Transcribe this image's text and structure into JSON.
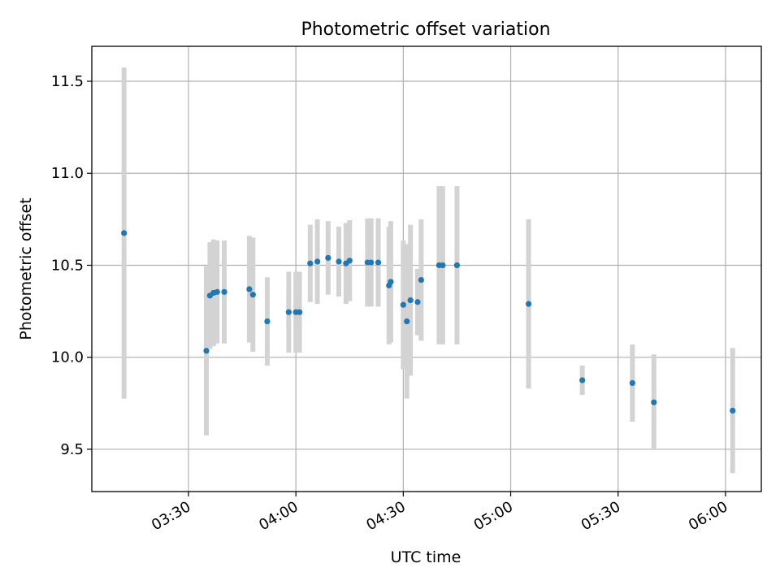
{
  "chart_data": {
    "type": "scatter",
    "title": "Photometric offset variation",
    "xlabel": "UTC time",
    "ylabel": "Photometric offset",
    "xlim": [
      "03:03",
      "06:10"
    ],
    "ylim": [
      9.27,
      11.69
    ],
    "x_ticks": [
      "03:30",
      "04:00",
      "04:30",
      "05:00",
      "05:30",
      "06:00"
    ],
    "y_ticks": [
      "9.5",
      "10.0",
      "10.5",
      "11.0",
      "11.5"
    ],
    "grid": true,
    "colors": {
      "point": "#1f77b4",
      "errorbar": "#d3d3d3",
      "grid": "#b0b0b0"
    },
    "points": [
      {
        "x": "03:12",
        "y": 10.675,
        "err": 0.9
      },
      {
        "x": "03:35",
        "y": 10.035,
        "err": 0.46
      },
      {
        "x": "03:36",
        "y": 10.335,
        "err": 0.29
      },
      {
        "x": "03:37",
        "y": 10.35,
        "err": 0.29
      },
      {
        "x": "03:38",
        "y": 10.355,
        "err": 0.28
      },
      {
        "x": "03:40",
        "y": 10.355,
        "err": 0.28
      },
      {
        "x": "03:47",
        "y": 10.37,
        "err": 0.29
      },
      {
        "x": "03:48",
        "y": 10.34,
        "err": 0.31
      },
      {
        "x": "03:52",
        "y": 10.195,
        "err": 0.24
      },
      {
        "x": "03:58",
        "y": 10.245,
        "err": 0.22
      },
      {
        "x": "04:00",
        "y": 10.245,
        "err": 0.22
      },
      {
        "x": "04:01",
        "y": 10.245,
        "err": 0.22
      },
      {
        "x": "04:04",
        "y": 10.51,
        "err": 0.21
      },
      {
        "x": "04:06",
        "y": 10.52,
        "err": 0.23
      },
      {
        "x": "04:09",
        "y": 10.54,
        "err": 0.2
      },
      {
        "x": "04:12",
        "y": 10.52,
        "err": 0.19
      },
      {
        "x": "04:14",
        "y": 10.51,
        "err": 0.22
      },
      {
        "x": "04:15",
        "y": 10.525,
        "err": 0.22
      },
      {
        "x": "04:20",
        "y": 10.515,
        "err": 0.24
      },
      {
        "x": "04:21",
        "y": 10.515,
        "err": 0.24
      },
      {
        "x": "04:23",
        "y": 10.515,
        "err": 0.24
      },
      {
        "x": "04:26",
        "y": 10.39,
        "err": 0.32
      },
      {
        "x": "04:26.5",
        "y": 10.41,
        "err": 0.33
      },
      {
        "x": "04:30",
        "y": 10.285,
        "err": 0.35
      },
      {
        "x": "04:31",
        "y": 10.195,
        "err": 0.42
      },
      {
        "x": "04:32",
        "y": 10.31,
        "err": 0.41
      },
      {
        "x": "04:34",
        "y": 10.3,
        "err": 0.18
      },
      {
        "x": "04:35",
        "y": 10.42,
        "err": 0.33
      },
      {
        "x": "04:40",
        "y": 10.5,
        "err": 0.43
      },
      {
        "x": "04:41",
        "y": 10.5,
        "err": 0.43
      },
      {
        "x": "04:45",
        "y": 10.5,
        "err": 0.43
      },
      {
        "x": "05:05",
        "y": 10.29,
        "err": 0.46
      },
      {
        "x": "05:20",
        "y": 9.875,
        "err": 0.08
      },
      {
        "x": "05:34",
        "y": 9.86,
        "err": 0.21
      },
      {
        "x": "05:40",
        "y": 9.755,
        "err": 0.26
      },
      {
        "x": "06:02",
        "y": 9.71,
        "err": 0.34
      }
    ]
  }
}
